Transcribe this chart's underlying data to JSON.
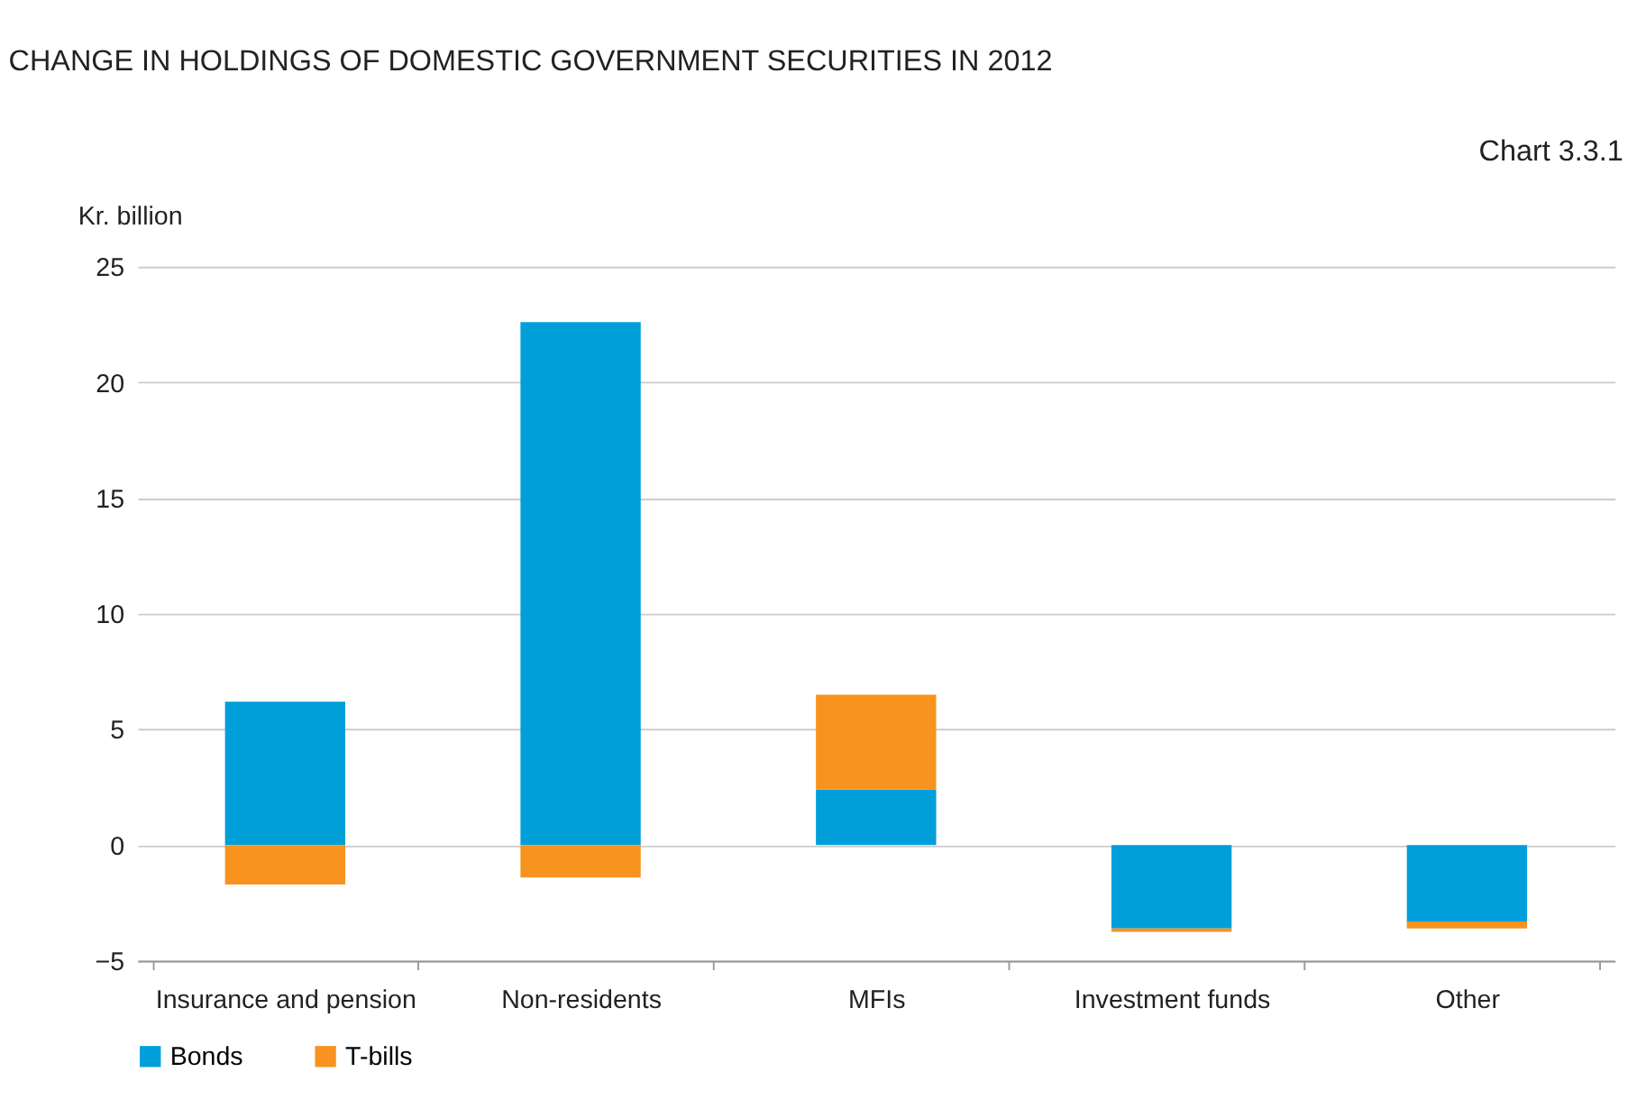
{
  "chart_data": {
    "type": "bar",
    "title": "CHANGE IN HOLDINGS OF DOMESTIC GOVERNMENT SECURITIES IN 2012",
    "ylabel": "Kr. billion",
    "annotations": [
      "Chart 3.3.1"
    ],
    "categories": [
      "Insurance and pension",
      "Non-residents",
      "MFIs",
      "Investment funds",
      "Other"
    ],
    "stacked": true,
    "series": [
      {
        "name": "Bonds",
        "color": "#009fda",
        "values": [
          6.2,
          22.6,
          2.4,
          -3.6,
          -3.3
        ]
      },
      {
        "name": "T-bills",
        "color": "#f7931e",
        "values": [
          -1.7,
          -1.4,
          4.1,
          -0.15,
          -0.3
        ]
      }
    ],
    "ylim": [
      -5,
      25
    ],
    "yticks": [
      -5,
      0,
      5,
      10,
      15,
      20,
      25
    ],
    "grid": "y",
    "legend": "bottom left"
  }
}
